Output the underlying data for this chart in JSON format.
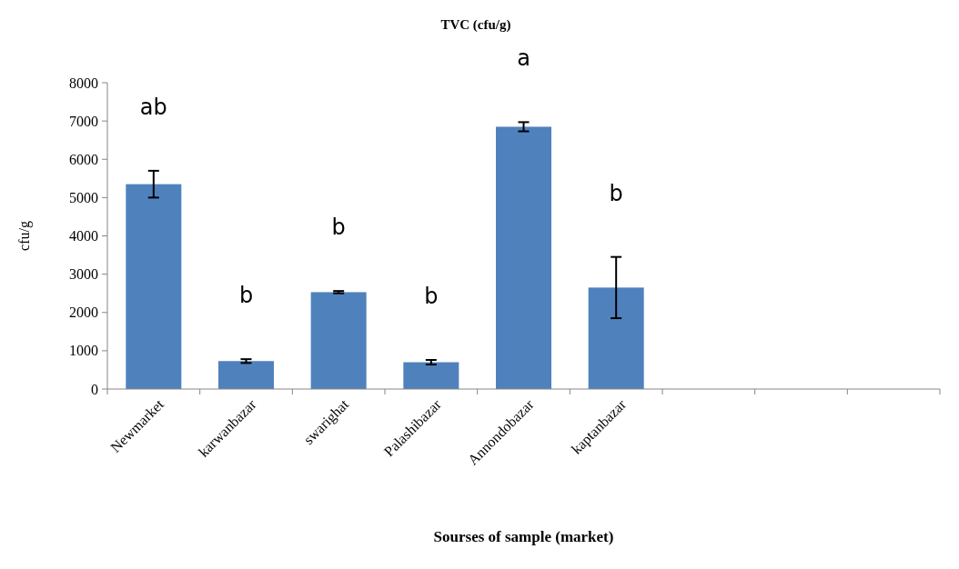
{
  "chart_data": {
    "type": "bar",
    "title": "TVC (cfu/g)",
    "xlabel": "Sourses of  sample (market)",
    "ylabel": "cfu/g",
    "categories": [
      "Newmarket",
      "karwanbazar",
      "swarighat",
      "Palashibazar",
      "Annondobazar",
      "kaptanbazar",
      null,
      null,
      null
    ],
    "values": [
      5350,
      730,
      2530,
      700,
      6850,
      2650,
      null,
      null,
      null
    ],
    "errors": [
      350,
      50,
      30,
      60,
      120,
      800,
      null,
      null,
      null
    ],
    "color": "#4f81bd",
    "ylim": [
      0,
      8000
    ],
    "yticks": [
      0,
      1000,
      2000,
      3000,
      4000,
      5000,
      6000,
      7000,
      8000
    ],
    "grid": false,
    "annotations": [
      "ab",
      "b",
      "b",
      "b",
      "a",
      "b"
    ]
  }
}
